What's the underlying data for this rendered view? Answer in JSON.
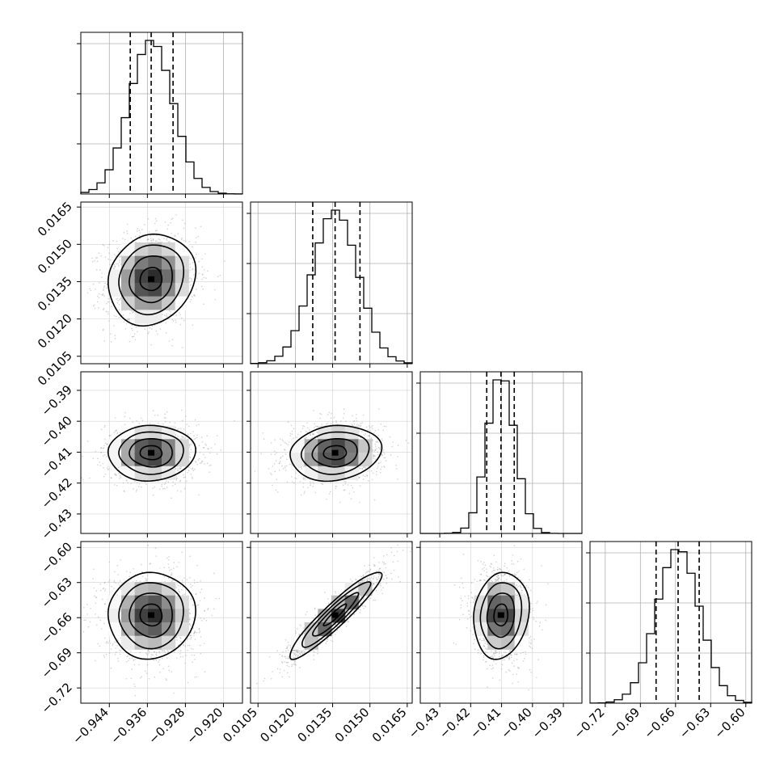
{
  "chart_data": {
    "type": "corner",
    "grid": true,
    "parameters": [
      {
        "range": [
          -0.95,
          -0.916
        ],
        "ticks": [
          -0.944,
          -0.936,
          -0.928,
          -0.92
        ],
        "tick_labels": [
          "−0.944",
          "−0.936",
          "−0.928",
          "−0.920"
        ],
        "quantiles": [
          -0.9396,
          -0.9352,
          -0.9306
        ],
        "center": -0.9352,
        "sigma": 0.0046
      },
      {
        "range": [
          0.0102,
          0.0167
        ],
        "ticks": [
          0.0105,
          0.012,
          0.0135,
          0.015,
          0.0165
        ],
        "tick_labels": [
          "0.0105",
          "0.0120",
          "0.0135",
          "0.0150",
          "0.0165"
        ],
        "quantiles": [
          0.0127,
          0.0136,
          0.0146
        ],
        "center": 0.0136,
        "sigma": 0.00092
      },
      {
        "range": [
          -0.4363,
          -0.384
        ],
        "ticks": [
          -0.43,
          -0.42,
          -0.41,
          -0.4,
          -0.39
        ],
        "tick_labels": [
          "−0.43",
          "−0.42",
          "−0.41",
          "−0.40",
          "−0.39"
        ],
        "quantiles": [
          -0.4148,
          -0.4102,
          -0.4059
        ],
        "center": -0.4102,
        "sigma": 0.0045
      },
      {
        "range": [
          -0.733,
          -0.595
        ],
        "ticks": [
          -0.72,
          -0.69,
          -0.66,
          -0.63,
          -0.6
        ],
        "tick_labels": [
          "−0.72",
          "−0.69",
          "−0.66",
          "−0.63",
          "−0.60"
        ],
        "quantiles": [
          -0.6766,
          -0.6578,
          -0.6398
        ],
        "center": -0.6578,
        "sigma": 0.0185
      }
    ],
    "correlations": [
      [
        1,
        0.1,
        0.0,
        0.0
      ],
      [
        0.1,
        1,
        0.1,
        0.93
      ],
      [
        0.0,
        0.1,
        1,
        -0.1
      ],
      [
        0.0,
        0.93,
        -0.1,
        1
      ]
    ]
  }
}
